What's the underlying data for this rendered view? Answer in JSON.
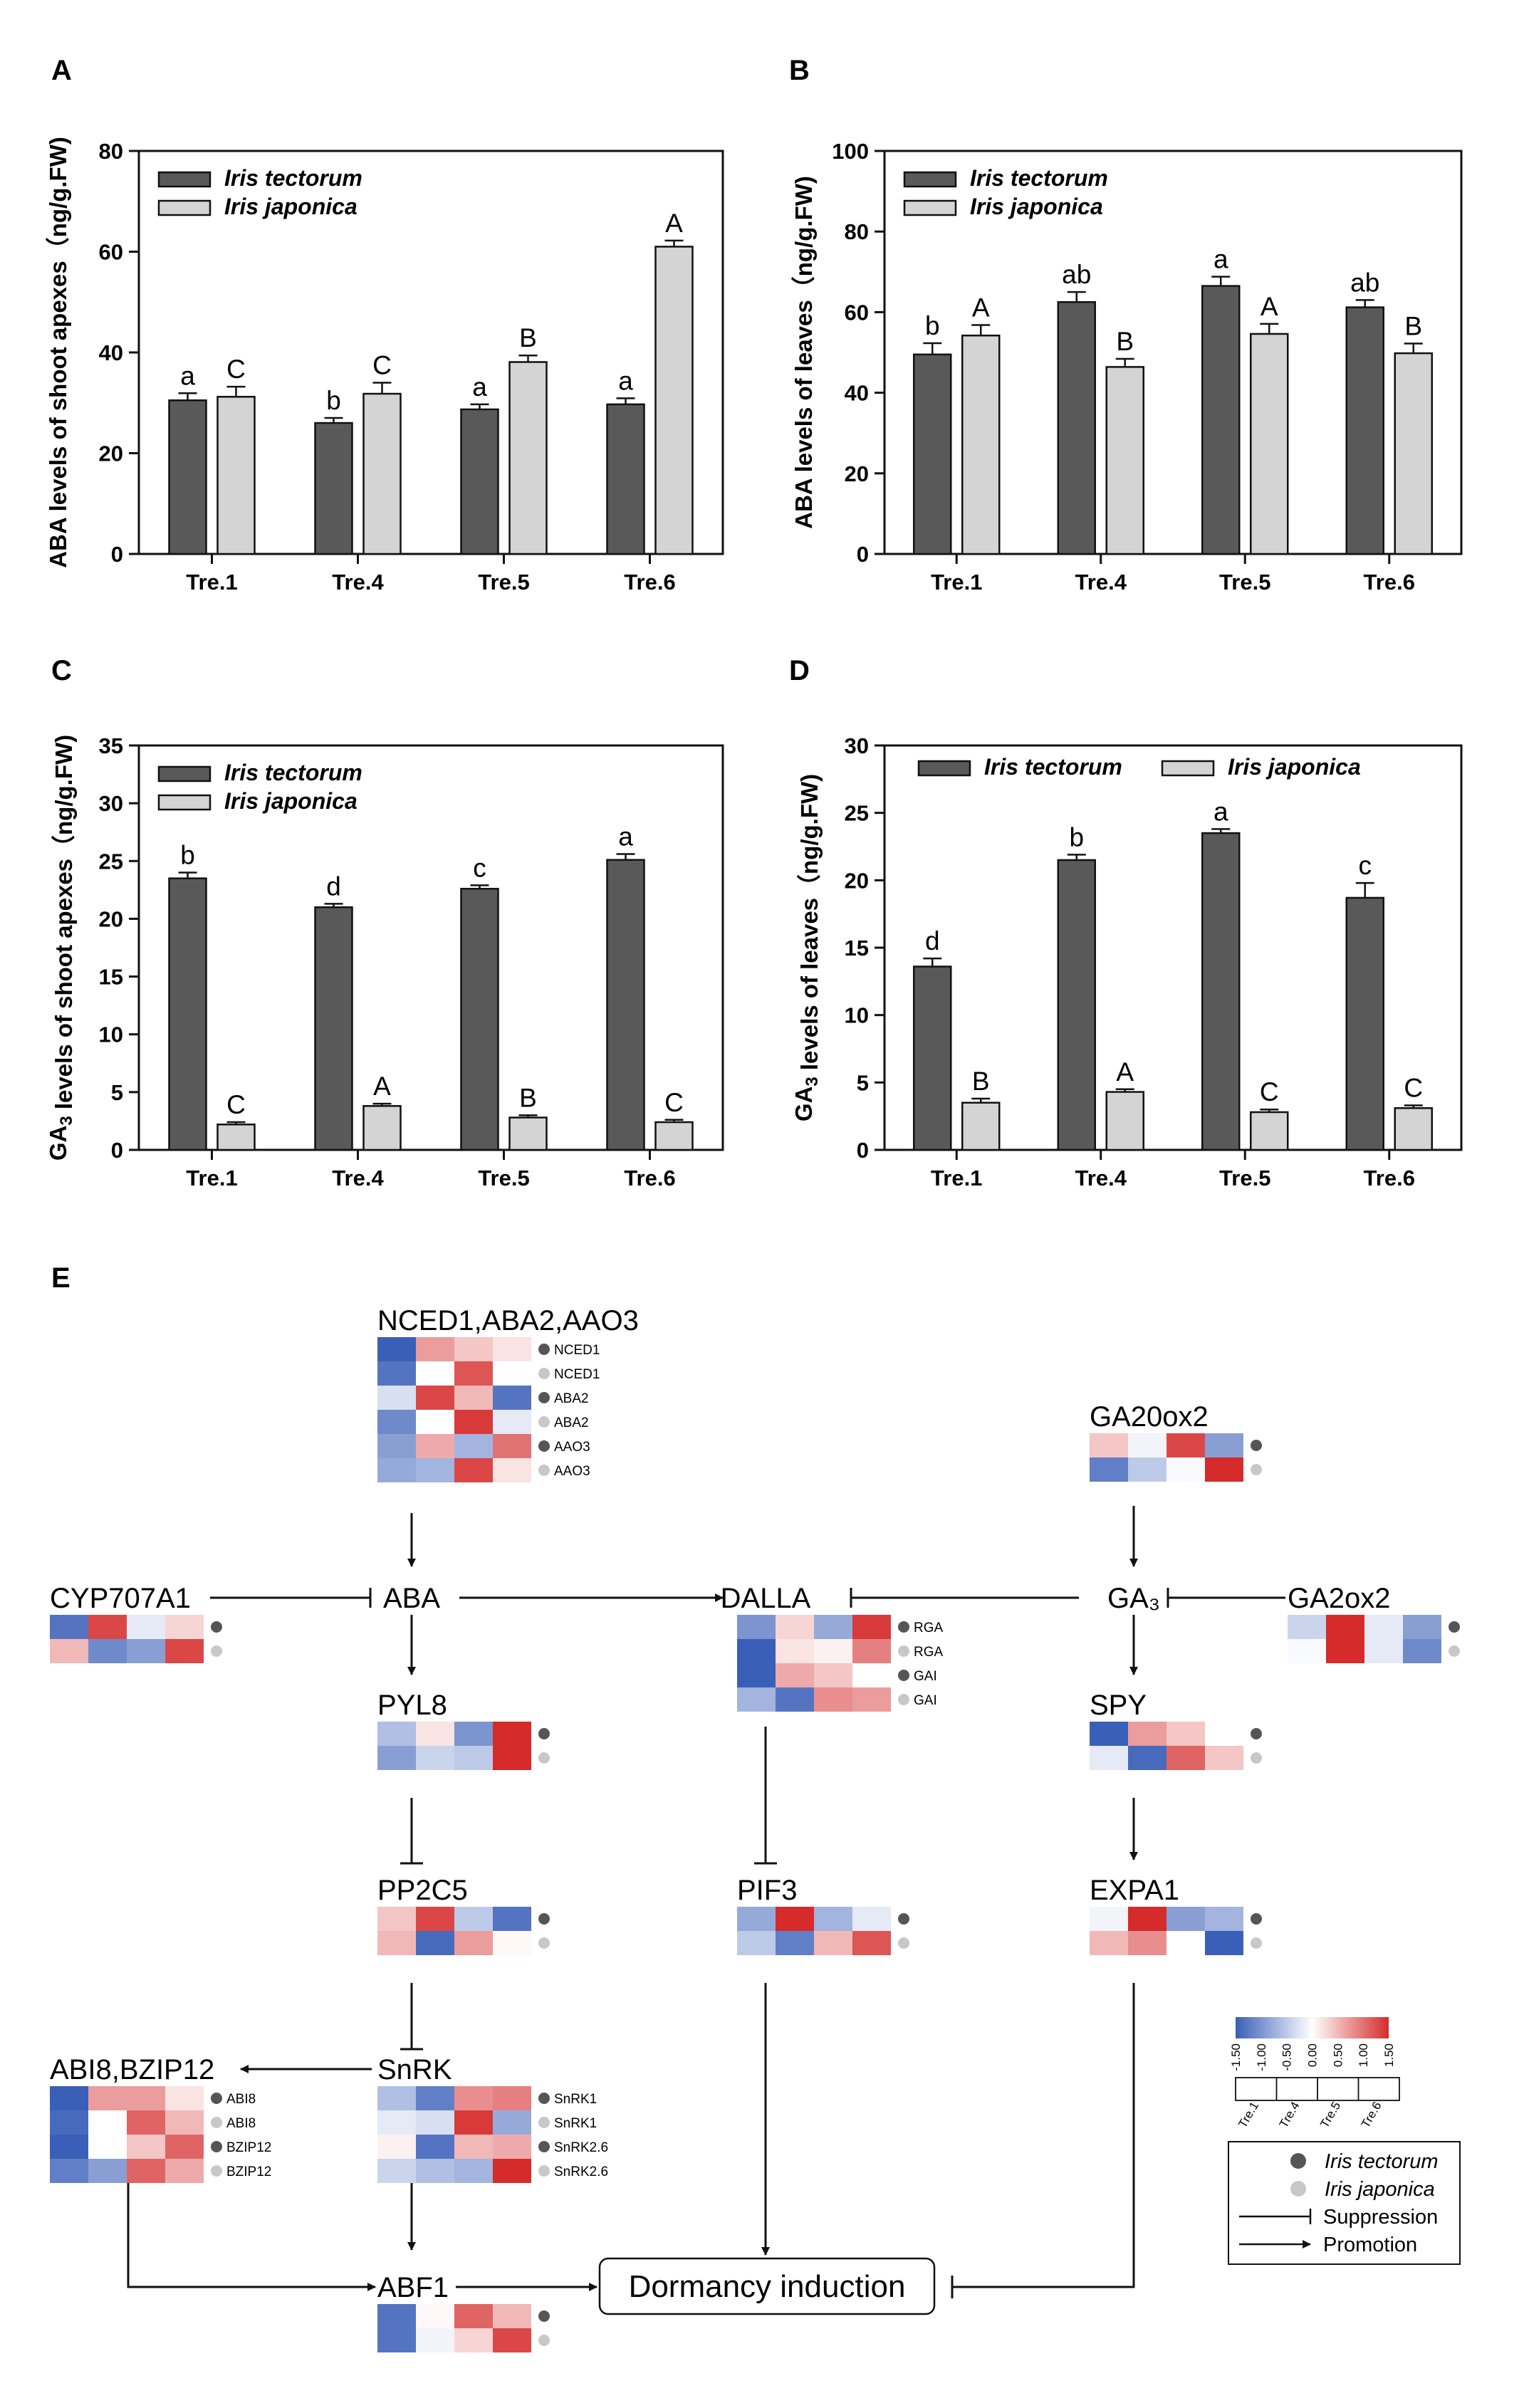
{
  "chart_data": [
    {
      "panel": "A",
      "type": "bar",
      "ylabel": "ABA levels of shoot apexes（ng/g.FW)",
      "ylabel_parts": [
        {
          "t": "ABA levels of shoot apexes（ng/g.FW)"
        }
      ],
      "ylim": [
        0,
        80
      ],
      "yticks": [
        0,
        20,
        40,
        60,
        80
      ],
      "categories": [
        "Tre.1",
        "Tre.4",
        "Tre.5",
        "Tre.6"
      ],
      "legend": "top-left-two-rows",
      "series": [
        {
          "name": "Iris tectorum",
          "color": "#595959",
          "values": [
            30.5,
            26,
            28.7,
            29.7
          ],
          "errors": [
            1.4,
            1.0,
            1.0,
            1.2
          ],
          "letters": [
            "a",
            "b",
            "a",
            "a"
          ]
        },
        {
          "name": "Iris japonica",
          "color": "#d4d4d4",
          "values": [
            31.2,
            31.8,
            38.1,
            61
          ],
          "errors": [
            2.0,
            2.2,
            1.3,
            1.2
          ],
          "letters": [
            "C",
            "C",
            "B",
            "A"
          ]
        }
      ]
    },
    {
      "panel": "B",
      "type": "bar",
      "ylabel": "ABA levels of leaves（ng/g.FW)",
      "ylabel_parts": [
        {
          "t": "ABA levels of leaves（ng/g.FW)"
        }
      ],
      "ylim": [
        0,
        100
      ],
      "yticks": [
        0,
        20,
        40,
        60,
        80,
        100
      ],
      "categories": [
        "Tre.1",
        "Tre.4",
        "Tre.5",
        "Tre.6"
      ],
      "legend": "top-left-two-rows",
      "series": [
        {
          "name": "Iris tectorum",
          "color": "#595959",
          "values": [
            49.5,
            62.5,
            66.5,
            61.2
          ],
          "errors": [
            2.8,
            2.5,
            2.3,
            1.8
          ],
          "letters": [
            "b",
            "ab",
            "a",
            "ab"
          ]
        },
        {
          "name": "Iris japonica",
          "color": "#d4d4d4",
          "values": [
            54.2,
            46.4,
            54.6,
            49.8
          ],
          "errors": [
            2.6,
            2.0,
            2.5,
            2.4
          ],
          "letters": [
            "A",
            "B",
            "A",
            "B"
          ]
        }
      ]
    },
    {
      "panel": "C",
      "type": "bar",
      "ylabel": "GA3 levels of shoot apexes（ng/g.FW)",
      "ylabel_parts": [
        {
          "t": "GA"
        },
        {
          "t": "3",
          "sub": true
        },
        {
          "t": " levels of shoot apexes（ng/g.FW)"
        }
      ],
      "ylim": [
        0,
        35
      ],
      "yticks": [
        0,
        5,
        10,
        15,
        20,
        25,
        30,
        35
      ],
      "categories": [
        "Tre.1",
        "Tre.4",
        "Tre.5",
        "Tre.6"
      ],
      "legend": "top-left-two-rows",
      "series": [
        {
          "name": "Iris tectorum",
          "color": "#595959",
          "values": [
            23.5,
            21,
            22.6,
            25.1
          ],
          "errors": [
            0.5,
            0.3,
            0.3,
            0.5
          ],
          "letters": [
            "b",
            "d",
            "c",
            "a"
          ]
        },
        {
          "name": "Iris japonica",
          "color": "#d4d4d4",
          "values": [
            2.2,
            3.8,
            2.8,
            2.4
          ],
          "errors": [
            0.2,
            0.2,
            0.2,
            0.2
          ],
          "letters": [
            "C",
            "A",
            "B",
            "C"
          ]
        }
      ]
    },
    {
      "panel": "D",
      "type": "bar",
      "ylabel": "GA3 levels of leaves（ng/g.FW)",
      "ylabel_parts": [
        {
          "t": "GA"
        },
        {
          "t": "3",
          "sub": true
        },
        {
          "t": " levels of leaves（ng/g.FW)"
        }
      ],
      "ylim": [
        0,
        30
      ],
      "yticks": [
        0,
        5,
        10,
        15,
        20,
        25,
        30
      ],
      "categories": [
        "Tre.1",
        "Tre.4",
        "Tre.5",
        "Tre.6"
      ],
      "legend": "top-one-row",
      "series": [
        {
          "name": "Iris tectorum",
          "color": "#595959",
          "values": [
            13.6,
            21.5,
            23.5,
            18.7
          ],
          "errors": [
            0.6,
            0.4,
            0.3,
            1.1
          ],
          "letters": [
            "d",
            "b",
            "a",
            "c"
          ]
        },
        {
          "name": "Iris japonica",
          "color": "#d4d4d4",
          "values": [
            3.5,
            4.3,
            2.8,
            3.1
          ],
          "errors": [
            0.3,
            0.2,
            0.2,
            0.2
          ],
          "letters": [
            "B",
            "A",
            "C",
            "C"
          ]
        }
      ]
    }
  ],
  "panel_letters": [
    "A",
    "B",
    "C",
    "D",
    "E"
  ],
  "diagram": {
    "colors": {
      "neg": "#3a5fb8",
      "mid": "#ffffff",
      "pos": "#d52b2b",
      "dot_dark": "#555555",
      "dot_light": "#c8c8c8"
    },
    "nodes": [
      {
        "id": "nced",
        "label": "NCED1,ABA2,AAO3",
        "rows": [
          {
            "dot": "dark",
            "label": "NCED1",
            "values": [
              -1.5,
              0.7,
              0.4,
              0.2
            ]
          },
          {
            "dot": "light",
            "label": "NCED1",
            "values": [
              -1.3,
              0.0,
              1.2,
              0.0
            ]
          },
          {
            "dot": "dark",
            "label": "ABA2",
            "values": [
              -0.3,
              1.3,
              0.5,
              -1.3
            ]
          },
          {
            "dot": "light",
            "label": "ABA2",
            "values": [
              -1.1,
              0.0,
              1.4,
              -0.2
            ]
          },
          {
            "dot": "dark",
            "label": "AAO3",
            "values": [
              -0.9,
              0.6,
              -0.7,
              1.0
            ]
          },
          {
            "dot": "light",
            "label": "AAO3",
            "values": [
              -0.8,
              -0.7,
              1.3,
              0.2
            ]
          }
        ]
      },
      {
        "id": "ga20ox2",
        "label": "GA20ox2",
        "rows": [
          {
            "dot": "dark",
            "values": [
              0.4,
              -0.1,
              1.3,
              -0.9
            ]
          },
          {
            "dot": "light",
            "values": [
              -1.2,
              -0.5,
              -0.05,
              1.5
            ]
          }
        ]
      },
      {
        "id": "cyp",
        "label": "CYP707A1",
        "rows": [
          {
            "dot": "dark",
            "values": [
              -1.3,
              1.3,
              -0.2,
              0.3
            ]
          },
          {
            "dot": "light",
            "values": [
              0.5,
              -1.1,
              -0.9,
              1.3
            ]
          }
        ]
      },
      {
        "id": "aba",
        "label": "ABA",
        "rows": []
      },
      {
        "id": "dalla",
        "label": "DALLA",
        "rows": [
          {
            "dot": "dark",
            "label": "RGA",
            "values": [
              -1.0,
              0.3,
              -0.8,
              1.4
            ]
          },
          {
            "dot": "light",
            "label": "RGA",
            "values": [
              -1.5,
              0.2,
              0.1,
              0.9
            ]
          },
          {
            "dot": "dark",
            "label": "GAI",
            "values": [
              -1.5,
              0.6,
              0.4,
              0.0
            ]
          },
          {
            "dot": "light",
            "label": "GAI",
            "values": [
              -0.7,
              -1.3,
              0.8,
              0.7
            ]
          }
        ]
      },
      {
        "id": "ga3",
        "label": "GA₃",
        "rows": []
      },
      {
        "id": "ga2ox2",
        "label": "GA2ox2",
        "rows": [
          {
            "dot": "dark",
            "values": [
              -0.4,
              1.5,
              -0.2,
              -0.9
            ]
          },
          {
            "dot": "light",
            "values": [
              -0.05,
              1.5,
              -0.2,
              -1.1
            ]
          }
        ]
      },
      {
        "id": "pyl8",
        "label": "PYL8",
        "rows": [
          {
            "dot": "dark",
            "values": [
              -0.6,
              0.2,
              -1.0,
              1.5
            ]
          },
          {
            "dot": "light",
            "values": [
              -0.9,
              -0.4,
              -0.5,
              1.5
            ]
          }
        ]
      },
      {
        "id": "spy",
        "label": "SPY",
        "rows": [
          {
            "dot": "dark",
            "values": [
              -1.5,
              0.7,
              0.4,
              0.0
            ]
          },
          {
            "dot": "light",
            "values": [
              -0.2,
              -1.4,
              1.1,
              0.4
            ]
          }
        ]
      },
      {
        "id": "pp2c5",
        "label": "PP2C5",
        "rows": [
          {
            "dot": "dark",
            "values": [
              0.4,
              1.3,
              -0.5,
              -1.3
            ]
          },
          {
            "dot": "light",
            "values": [
              0.5,
              -1.4,
              0.7,
              0.05
            ]
          }
        ]
      },
      {
        "id": "pif3",
        "label": "PIF3",
        "rows": [
          {
            "dot": "dark",
            "values": [
              -0.8,
              1.5,
              -0.7,
              -0.2
            ]
          },
          {
            "dot": "light",
            "values": [
              -0.5,
              -1.2,
              0.5,
              1.2
            ]
          }
        ]
      },
      {
        "id": "expa1",
        "label": "EXPA1",
        "rows": [
          {
            "dot": "dark",
            "values": [
              -0.1,
              1.5,
              -0.9,
              -0.7
            ]
          },
          {
            "dot": "light",
            "values": [
              0.5,
              0.8,
              0.0,
              -1.5
            ]
          }
        ]
      },
      {
        "id": "abi8",
        "label": "ABI8,BZIP12",
        "rows": [
          {
            "dot": "dark",
            "label": "ABI8",
            "values": [
              -1.5,
              0.7,
              0.7,
              0.2
            ]
          },
          {
            "dot": "light",
            "label": "ABI8",
            "values": [
              -1.4,
              0.0,
              1.1,
              0.5
            ]
          },
          {
            "dot": "dark",
            "label": "BZIP12",
            "values": [
              -1.5,
              0.0,
              0.4,
              1.1
            ]
          },
          {
            "dot": "light",
            "label": "BZIP12",
            "values": [
              -1.2,
              -0.9,
              1.1,
              0.6
            ]
          }
        ]
      },
      {
        "id": "snrk",
        "label": "SnRK",
        "rows": [
          {
            "dot": "dark",
            "label": "SnRK1",
            "values": [
              -0.6,
              -1.2,
              0.8,
              0.9
            ]
          },
          {
            "dot": "light",
            "label": "SnRK1",
            "values": [
              -0.2,
              -0.3,
              1.4,
              -0.8
            ]
          },
          {
            "dot": "dark",
            "label": "SnRK2.6",
            "values": [
              0.1,
              -1.3,
              0.5,
              0.6
            ]
          },
          {
            "dot": "light",
            "label": "SnRK2.6",
            "values": [
              -0.4,
              -0.6,
              -0.7,
              1.5
            ]
          }
        ]
      },
      {
        "id": "abf1",
        "label": "ABF1",
        "rows": [
          {
            "dot": "dark",
            "values": [
              -1.3,
              0.05,
              1.1,
              0.5
            ]
          },
          {
            "dot": "light",
            "values": [
              -1.3,
              -0.1,
              0.3,
              1.3
            ]
          }
        ]
      },
      {
        "id": "dormancy",
        "label": "Dormancy induction",
        "rows": []
      }
    ],
    "colorbar": {
      "ticks": [
        "-1.50",
        "-1.00",
        "-0.50",
        "0.00",
        "0.50",
        "1.00",
        "1.50"
      ],
      "treatments": [
        "Tre.1",
        "Tre.4",
        "Tre.5",
        "Tre.6"
      ]
    },
    "legend": {
      "items": [
        "Iris tectorum",
        "Iris japonica",
        "Suppression",
        "Promotion"
      ]
    }
  }
}
